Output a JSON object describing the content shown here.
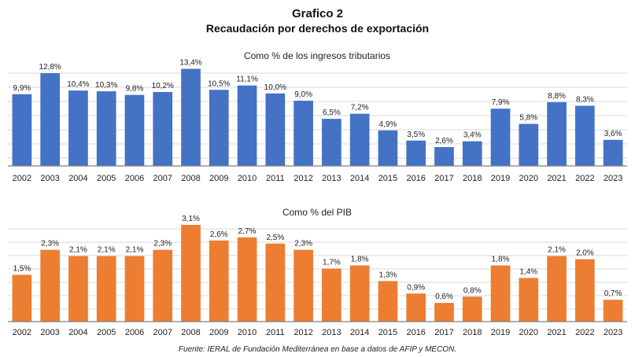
{
  "header": {
    "title": "Grafico 2",
    "subtitle": "Recaudación por derechos de exportación"
  },
  "source": "Fuente: IERAL de Fundación Mediterránea en base a datos de AFIP y MECON.",
  "colors": {
    "top_bars": "#4472C4",
    "bottom_bars": "#ED7D31",
    "grid": "#d9d9d9",
    "axis": "#7f7f7f"
  },
  "chart_data": [
    {
      "type": "bar",
      "title": "Como % de los ingresos tributarios",
      "categories": [
        "2002",
        "2003",
        "2004",
        "2005",
        "2006",
        "2007",
        "2008",
        "2009",
        "2010",
        "2011",
        "2012",
        "2013",
        "2014",
        "2015",
        "2016",
        "2017",
        "2018",
        "2019",
        "2020",
        "2021",
        "2022",
        "2023"
      ],
      "values": [
        9.9,
        12.8,
        10.4,
        10.3,
        9.8,
        10.2,
        13.4,
        10.5,
        11.1,
        10.0,
        9.0,
        6.5,
        7.2,
        4.9,
        3.5,
        2.6,
        3.4,
        7.9,
        5.8,
        8.8,
        8.3,
        3.6
      ],
      "labels": [
        "9,9%",
        "12,8%",
        "10,4%",
        "10,3%",
        "9,8%",
        "10,2%",
        "13,4%",
        "10,5%",
        "11,1%",
        "10,0%",
        "9,0%",
        "6,5%",
        "7,2%",
        "4,9%",
        "3,5%",
        "2,6%",
        "3,4%",
        "7,9%",
        "5,8%",
        "8,8%",
        "8,3%",
        "3,6%"
      ],
      "ylim": [
        0,
        14
      ],
      "grid": true,
      "color": "#4472C4"
    },
    {
      "type": "bar",
      "title": "Como % del PIB",
      "categories": [
        "2002",
        "2003",
        "2004",
        "2005",
        "2006",
        "2007",
        "2008",
        "2009",
        "2010",
        "2011",
        "2012",
        "2013",
        "2014",
        "2015",
        "2016",
        "2017",
        "2018",
        "2019",
        "2020",
        "2021",
        "2022",
        "2023"
      ],
      "values": [
        1.5,
        2.3,
        2.1,
        2.1,
        2.1,
        2.3,
        3.1,
        2.6,
        2.7,
        2.5,
        2.3,
        1.7,
        1.8,
        1.3,
        0.9,
        0.6,
        0.8,
        1.8,
        1.4,
        2.1,
        2.0,
        0.7
      ],
      "labels": [
        "1,5%",
        "2,3%",
        "2,1%",
        "2,1%",
        "2,1%",
        "2,3%",
        "3,1%",
        "2,6%",
        "2,7%",
        "2,5%",
        "2,3%",
        "1,7%",
        "1,8%",
        "1,3%",
        "0,9%",
        "0,6%",
        "0,8%",
        "1,8%",
        "1,4%",
        "2,1%",
        "2,0%",
        "0,7%"
      ],
      "ylim": [
        0,
        3.2
      ],
      "grid": true,
      "color": "#ED7D31"
    }
  ]
}
